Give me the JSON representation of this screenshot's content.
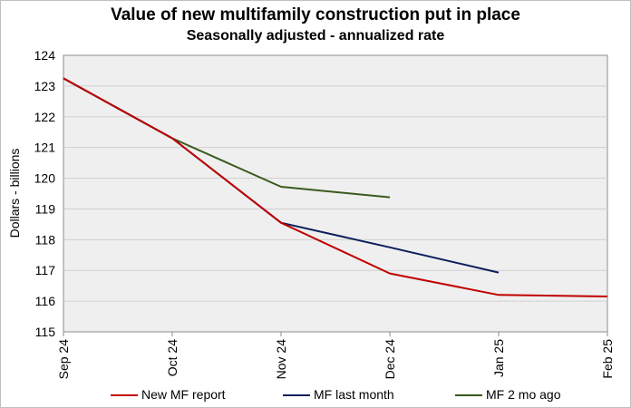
{
  "chart_data": {
    "type": "line",
    "title": "Value of new multifamily  construction put in place",
    "subtitle": "Seasonally adjusted - annualized rate",
    "ylabel": "Dollars - billions",
    "xlabel": "",
    "categories": [
      "Sep 24",
      "Oct 24",
      "Nov 24",
      "Dec 24",
      "Jan 25",
      "Feb 25"
    ],
    "yticks": [
      115,
      116,
      117,
      118,
      119,
      120,
      121,
      122,
      123,
      124
    ],
    "ylim": [
      115,
      124
    ],
    "grid": true,
    "legend_position": "bottom",
    "series": [
      {
        "name": "New MF report",
        "color": "#c00000",
        "values": [
          123.25,
          121.3,
          118.55,
          116.9,
          116.2,
          116.15
        ]
      },
      {
        "name": "MF last month",
        "color": "#0d1f5c",
        "values": [
          123.25,
          121.3,
          118.55,
          117.75,
          116.93,
          null
        ]
      },
      {
        "name": "MF 2 mo ago",
        "color": "#3a5a1e",
        "values": [
          123.25,
          121.3,
          119.72,
          119.38,
          null,
          null
        ]
      }
    ]
  }
}
